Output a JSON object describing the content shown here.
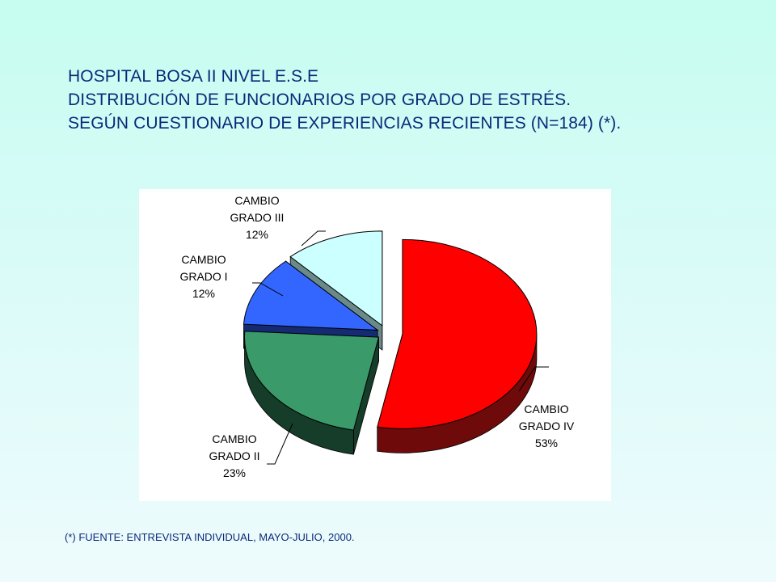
{
  "title": {
    "line1": "HOSPITAL BOSA II NIVEL E.S.E",
    "line2": "DISTRIBUCIÓN DE FUNCIONARIOS POR GRADO DE ESTRÉS.",
    "line3": "SEGÚN CUESTIONARIO DE EXPERIENCIAS RECIENTES  (N=184) (*)."
  },
  "footnote": "(*) FUENTE: ENTREVISTA INDIVIDUAL, MAYO-JULIO, 2000.",
  "chart_data": {
    "type": "pie",
    "style": "3d-exploded",
    "slices": [
      {
        "category": [
          "CAMBIO",
          "GRADO IV"
        ],
        "percent_label": "53%",
        "value": 53,
        "color": "#ff0000",
        "side_color": "#6e0a0a"
      },
      {
        "category": [
          "CAMBIO",
          "GRADO II"
        ],
        "percent_label": "23%",
        "value": 23,
        "color": "#3a9a6a",
        "side_color": "#153d29"
      },
      {
        "category": [
          "CAMBIO",
          "GRADO I"
        ],
        "percent_label": "12%",
        "value": 12,
        "color": "#3366ff",
        "side_color": "#142a73"
      },
      {
        "category": [
          "CAMBIO",
          "GRADO III"
        ],
        "percent_label": "12%",
        "value": 12,
        "color": "#ccffff",
        "side_color": "#6a8a8a"
      }
    ]
  }
}
